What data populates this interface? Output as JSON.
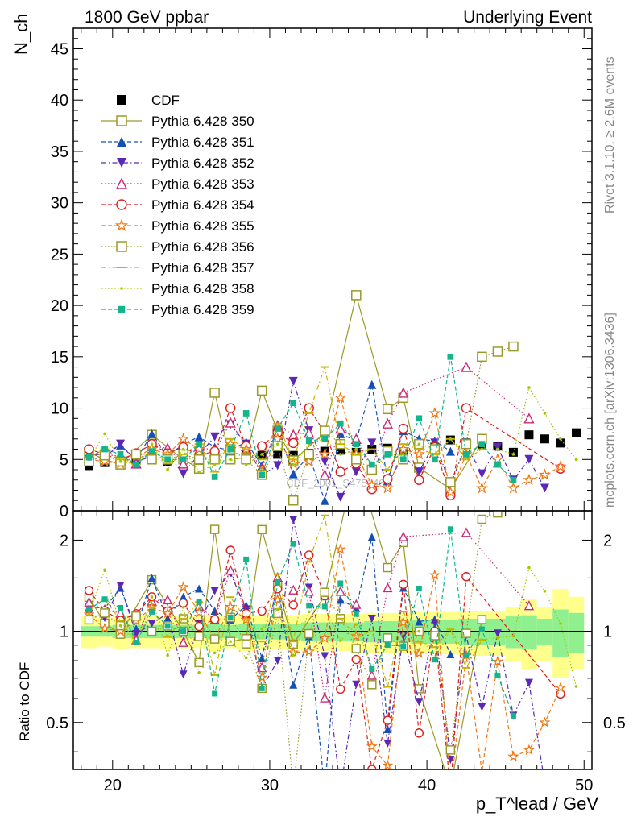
{
  "header": {
    "left_title": "1800 GeV ppbar",
    "right_title": "Underlying Event"
  },
  "side_labels": {
    "rivet": "Rivet 3.1.10, ≥ 2.6M events",
    "mcplots": "mcplots.cern.ch [arXiv:1306.3436]"
  },
  "watermark": "CDF_2001_S4751469",
  "chart_data": [
    {
      "type": "scatter",
      "panel": "main",
      "ylabel": "N_ch",
      "xlim": [
        17.5,
        50.5
      ],
      "ylim": [
        0,
        47
      ],
      "yticks": [
        0,
        5,
        10,
        15,
        20,
        25,
        30,
        35,
        40,
        45
      ],
      "legend_position": "top-left",
      "series": [
        {
          "name": "CDF",
          "color": "#000000",
          "marker": "square-filled",
          "dash": "none",
          "x": [
            18.5,
            19.5,
            20.5,
            21.5,
            22.5,
            23.5,
            24.5,
            25.5,
            26.5,
            27.5,
            28.5,
            29.5,
            30.5,
            31.5,
            32.5,
            33.5,
            34.5,
            35.5,
            36.5,
            37.5,
            38.5,
            39.5,
            40.5,
            41.5,
            42.5,
            43.5,
            44.5,
            45.5,
            46.5,
            47.5,
            48.5,
            49.5
          ],
          "y": [
            4.4,
            4.7,
            4.6,
            4.9,
            5.0,
            4.8,
            5.0,
            5.2,
            5.3,
            5.4,
            5.5,
            5.4,
            5.5,
            5.4,
            5.6,
            5.8,
            5.9,
            5.7,
            6.0,
            6.1,
            5.6,
            6.5,
            6.2,
            6.9,
            6.6,
            6.4,
            6.3,
            5.7,
            7.4,
            7.0,
            6.6,
            7.6
          ]
        },
        {
          "name": "Pythia 6.428 350",
          "color": "#9a9a2a",
          "marker": "square-open",
          "dash": "solid",
          "x": [
            18.5,
            19.5,
            20.5,
            22.5,
            24.5,
            25.5,
            26.5,
            27.5,
            28.5,
            29.5,
            30.5,
            31.5,
            33.5,
            35.5,
            37.5,
            38.5,
            39.5,
            41.5,
            43.5
          ],
          "y": [
            5.7,
            5.0,
            4.5,
            7.4,
            5.0,
            4.1,
            11.5,
            5.0,
            5.2,
            11.7,
            7.8,
            4.9,
            7.6,
            21.0,
            9.9,
            11.0,
            4.2,
            2.1,
            7.0
          ]
        },
        {
          "name": "Pythia 6.428 351",
          "color": "#1450b4",
          "marker": "triangle-up-filled",
          "dash": "dashed",
          "x": [
            18.5,
            19.5,
            20.5,
            21.5,
            22.5,
            23.5,
            24.5,
            25.5,
            26.5,
            27.5,
            28.5,
            29.5,
            30.5,
            31.5,
            32.5,
            33.5,
            34.5,
            35.5,
            36.5,
            37.5,
            38.5,
            39.5,
            40.5,
            41.5
          ],
          "y": [
            5.3,
            5.6,
            6.4,
            5.0,
            7.5,
            5.3,
            6.5,
            7.2,
            6.2,
            5.9,
            6.7,
            4.4,
            7.9,
            3.6,
            5.4,
            1.0,
            7.5,
            6.8,
            12.3,
            2.9,
            7.8,
            7.0,
            6.8,
            5.8
          ]
        },
        {
          "name": "Pythia 6.428 352",
          "color": "#5a28b4",
          "marker": "triangle-down-filled",
          "dash": "dashdot",
          "x": [
            18.5,
            19.5,
            20.5,
            21.5,
            22.5,
            23.5,
            24.5,
            25.5,
            26.5,
            27.5,
            28.5,
            29.5,
            30.5,
            31.5,
            32.5,
            33.5,
            34.5,
            35.5,
            36.5,
            37.5,
            38.5,
            39.5,
            40.5,
            41.5,
            42.5,
            43.5,
            44.5,
            45.5,
            46.5,
            47.5
          ],
          "y": [
            5.0,
            5.2,
            6.5,
            4.8,
            5.3,
            5.5,
            3.6,
            5.5,
            7.2,
            8.4,
            6.5,
            3.5,
            4.4,
            12.6,
            7.8,
            4.8,
            1.3,
            3.8,
            6.6,
            2.6,
            5.4,
            3.8,
            6.6,
            2.6,
            6.4,
            3.6,
            6.2,
            3.0,
            5.0,
            2.2
          ]
        },
        {
          "name": "Pythia 6.428 353",
          "color": "#c8287a",
          "marker": "triangle-up-open",
          "dash": "dotted",
          "x": [
            18.5,
            19.5,
            20.5,
            21.5,
            22.5,
            23.5,
            24.5,
            25.5,
            26.5,
            27.5,
            28.5,
            29.5,
            30.5,
            31.5,
            32.5,
            33.5,
            34.5,
            35.5,
            36.5,
            37.5,
            38.5,
            42.5,
            46.5
          ],
          "y": [
            5.5,
            5.5,
            5.3,
            4.6,
            6.3,
            6.1,
            4.6,
            6.3,
            5.8,
            8.6,
            6.3,
            4.1,
            8.3,
            7.4,
            7.6,
            3.5,
            8.0,
            7.0,
            4.3,
            8.5,
            11.5,
            14.0,
            9.0
          ]
        },
        {
          "name": "Pythia 6.428 354",
          "color": "#dc1e1e",
          "marker": "circle-open",
          "dash": "dashed",
          "x": [
            18.5,
            19.5,
            20.5,
            21.5,
            22.5,
            23.5,
            24.5,
            25.5,
            26.5,
            27.5,
            28.5,
            29.5,
            30.5,
            31.5,
            32.5,
            33.5,
            34.5,
            35.5,
            36.5,
            37.5,
            38.5,
            39.5,
            40.5,
            41.5,
            42.5,
            48.5
          ],
          "y": [
            6.0,
            5.5,
            5.0,
            5.6,
            6.5,
            5.6,
            6.2,
            5.4,
            5.8,
            10.0,
            6.3,
            6.3,
            7.6,
            6.6,
            10.0,
            7.6,
            3.8,
            4.6,
            2.1,
            3.1,
            8.0,
            3.0,
            6.2,
            1.5,
            10.0,
            4.1
          ]
        },
        {
          "name": "Pythia 6.428 355",
          "color": "#f07814",
          "marker": "star-open",
          "dash": "dashed",
          "x": [
            18.5,
            19.5,
            20.5,
            21.5,
            22.5,
            23.5,
            24.5,
            25.5,
            26.5,
            27.5,
            28.5,
            29.5,
            30.5,
            31.5,
            32.5,
            33.5,
            34.5,
            35.5,
            36.5,
            37.5,
            38.5,
            39.5,
            40.5,
            41.5,
            42.5,
            43.5,
            44.5,
            45.5,
            46.5,
            47.5,
            48.5
          ],
          "y": [
            5.0,
            4.8,
            4.6,
            5.3,
            6.0,
            5.5,
            7.0,
            6.0,
            5.0,
            6.5,
            6.0,
            3.8,
            7.0,
            4.6,
            4.8,
            5.5,
            11.0,
            5.5,
            2.5,
            2.2,
            6.0,
            5.5,
            9.5,
            1.8,
            5.5,
            2.2,
            5.0,
            2.2,
            3.0,
            3.5,
            4.3
          ]
        },
        {
          "name": "Pythia 6.428 356",
          "color": "#9a9a2a",
          "marker": "square-open",
          "dash": "dotted",
          "x": [
            18.5,
            19.5,
            20.5,
            21.5,
            22.5,
            23.5,
            24.5,
            25.5,
            26.5,
            27.5,
            28.5,
            29.5,
            30.5,
            31.5,
            32.5,
            33.5,
            34.5,
            35.5,
            36.5,
            37.5,
            38.5,
            39.5,
            40.5,
            41.5,
            42.5,
            43.5,
            44.5,
            45.5
          ],
          "y": [
            4.8,
            5.4,
            4.8,
            5.5,
            5.0,
            5.0,
            5.5,
            5.0,
            5.0,
            6.0,
            5.0,
            3.5,
            6.3,
            1.0,
            5.5,
            7.8,
            6.5,
            5.0,
            4.0,
            5.8,
            5.0,
            6.5,
            6.0,
            2.8,
            6.5,
            15.0,
            15.5,
            16.0
          ]
        },
        {
          "name": "Pythia 6.428 357",
          "color": "#c8b400",
          "marker": "dash",
          "dash": "dashdot",
          "x": [
            18.5,
            19.5,
            20.5,
            21.5,
            22.5,
            23.5,
            24.5,
            25.5,
            26.5,
            27.5,
            28.5,
            29.5,
            30.5,
            31.5,
            32.5,
            33.5,
            34.5,
            35.5,
            36.5,
            37.5,
            38.5,
            39.5,
            40.5,
            41.5,
            42.5,
            43.5
          ],
          "y": [
            5.2,
            6.0,
            5.0,
            4.5,
            6.0,
            4.6,
            5.5,
            6.5,
            3.8,
            7.0,
            6.0,
            5.0,
            8.5,
            5.0,
            9.5,
            14.0,
            6.5,
            5.5,
            6.0,
            4.0,
            6.5,
            6.0,
            5.5,
            7.0,
            5.0,
            6.0
          ]
        },
        {
          "name": "Pythia 6.428 358",
          "color": "#a0c800",
          "marker": "dot",
          "dash": "dotted",
          "x": [
            18.5,
            19.5,
            20.5,
            21.5,
            22.5,
            23.5,
            24.5,
            25.5,
            26.5,
            27.5,
            28.5,
            29.5,
            30.5,
            31.5,
            32.5,
            33.5,
            34.5,
            35.5,
            36.5,
            37.5,
            38.5,
            39.5,
            40.5,
            41.5,
            42.5,
            43.5,
            44.5,
            45.5,
            46.5,
            47.5,
            48.5,
            49.5
          ],
          "y": [
            5.0,
            7.5,
            4.8,
            4.5,
            6.5,
            4.0,
            6.0,
            3.8,
            4.5,
            5.0,
            4.5,
            5.5,
            6.5,
            4.5,
            6.5,
            7.0,
            5.5,
            6.0,
            4.5,
            5.5,
            5.5,
            6.5,
            5.0,
            7.0,
            5.5,
            6.0,
            6.0,
            5.5,
            12.0,
            9.5,
            7.0,
            5.0
          ]
        },
        {
          "name": "Pythia 6.428 359",
          "color": "#14b48c",
          "marker": "square-filled-small",
          "dash": "dashed",
          "x": [
            18.5,
            19.5,
            20.5,
            21.5,
            22.5,
            23.5,
            24.5,
            25.5,
            26.5,
            27.5,
            28.5,
            29.5,
            30.5,
            31.5,
            32.5,
            33.5,
            34.5,
            35.5,
            36.5,
            37.5,
            38.5,
            39.5,
            40.5,
            41.5,
            42.5,
            43.5,
            44.5,
            45.5
          ],
          "y": [
            5.2,
            6.0,
            5.5,
            4.5,
            5.8,
            5.0,
            5.0,
            6.5,
            3.3,
            6.0,
            9.5,
            3.5,
            8.0,
            10.5,
            6.8,
            7.0,
            8.5,
            6.5,
            4.5,
            5.5,
            5.0,
            9.0,
            5.0,
            15.0,
            5.5,
            6.5,
            4.5,
            3.0
          ]
        }
      ]
    },
    {
      "type": "scatter",
      "panel": "ratio",
      "ylabel": "Ratio to CDF",
      "xlabel": "p_T^lead / GeV",
      "scale": "log",
      "xlim": [
        17.5,
        50.5
      ],
      "ylim": [
        0.35,
        2.5
      ],
      "xticks": [
        20,
        30,
        40,
        50
      ],
      "yticks": [
        0.5,
        1,
        2
      ],
      "reference_line": 1,
      "bands": [
        {
          "name": "stat",
          "color": "#90f090",
          "x": [
            18.5,
            19.5,
            20.5,
            21.5,
            22.5,
            23.5,
            24.5,
            25.5,
            26.5,
            27.5,
            28.5,
            29.5,
            30.5,
            31.5,
            32.5,
            33.5,
            34.5,
            35.5,
            36.5,
            37.5,
            38.5,
            39.5,
            40.5,
            41.5,
            42.5,
            43.5,
            44.5,
            45.5,
            46.5,
            47.5,
            48.5,
            49.5
          ],
          "lo": [
            0.96,
            0.96,
            0.95,
            0.95,
            0.95,
            0.95,
            0.95,
            0.95,
            0.94,
            0.95,
            0.94,
            0.94,
            0.94,
            0.94,
            0.93,
            0.93,
            0.93,
            0.93,
            0.92,
            0.92,
            0.92,
            0.91,
            0.91,
            0.91,
            0.9,
            0.9,
            0.9,
            0.88,
            0.87,
            0.9,
            0.82,
            0.85
          ],
          "hi": [
            1.04,
            1.04,
            1.05,
            1.05,
            1.05,
            1.05,
            1.05,
            1.05,
            1.06,
            1.05,
            1.06,
            1.06,
            1.06,
            1.06,
            1.07,
            1.07,
            1.07,
            1.07,
            1.08,
            1.08,
            1.08,
            1.09,
            1.09,
            1.09,
            1.1,
            1.1,
            1.1,
            1.12,
            1.13,
            1.1,
            1.18,
            1.15
          ]
        },
        {
          "name": "total",
          "color": "#ffff8c",
          "x": [
            18.5,
            19.5,
            20.5,
            21.5,
            22.5,
            23.5,
            24.5,
            25.5,
            26.5,
            27.5,
            28.5,
            29.5,
            30.5,
            31.5,
            32.5,
            33.5,
            34.5,
            35.5,
            36.5,
            37.5,
            38.5,
            39.5,
            40.5,
            41.5,
            42.5,
            43.5,
            44.5,
            45.5,
            46.5,
            47.5,
            48.5,
            49.5
          ],
          "lo": [
            0.88,
            0.89,
            0.87,
            0.88,
            0.88,
            0.87,
            0.88,
            0.88,
            0.86,
            0.88,
            0.86,
            0.87,
            0.87,
            0.87,
            0.86,
            0.86,
            0.86,
            0.86,
            0.85,
            0.85,
            0.85,
            0.84,
            0.84,
            0.84,
            0.83,
            0.83,
            0.83,
            0.8,
            0.75,
            0.8,
            0.7,
            0.75
          ],
          "hi": [
            1.12,
            1.11,
            1.13,
            1.12,
            1.12,
            1.13,
            1.12,
            1.12,
            1.14,
            1.12,
            1.14,
            1.13,
            1.13,
            1.13,
            1.14,
            1.14,
            1.14,
            1.14,
            1.15,
            1.15,
            1.15,
            1.16,
            1.16,
            1.16,
            1.17,
            1.17,
            1.17,
            1.2,
            1.28,
            1.2,
            1.38,
            1.3
          ]
        }
      ]
    }
  ]
}
